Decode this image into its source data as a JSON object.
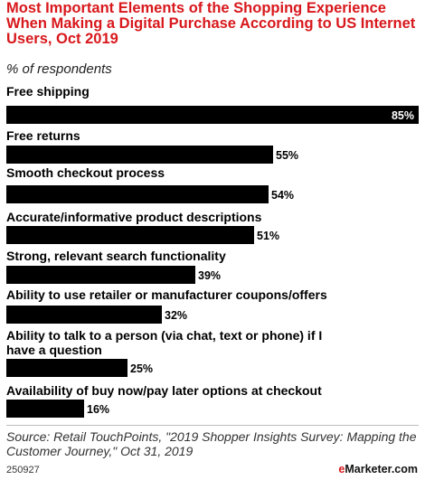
{
  "chart_data": {
    "type": "bar",
    "orientation": "horizontal",
    "title": "Most Important Elements of the Shopping Experience When Making a Digital Purchase According to US Internet Users, Oct 2019",
    "subtitle": "% of respondents",
    "categories": [
      "Free shipping",
      "Free returns",
      "Smooth checkout process",
      "Accurate/informative product descriptions",
      "Strong, relevant search functionality",
      "Ability to use retailer or manufacturer coupons/offers",
      "Ability to talk to a person (via chat, text or phone) if I have a question",
      "Availability of buy now/pay later options at checkout"
    ],
    "values": [
      85,
      55,
      54,
      51,
      39,
      32,
      25,
      16
    ],
    "value_labels": [
      "85%",
      "55%",
      "54%",
      "51%",
      "39%",
      "32%",
      "25%",
      "16%"
    ],
    "xlim": [
      0,
      85
    ],
    "grid": false,
    "legend": "none",
    "bar_color": "#000000"
  },
  "colors": {
    "title": "#d8181c",
    "bar": "#000000",
    "label_inside": "#ffffff",
    "label_outside": "#000000"
  },
  "source": "Source: Retail TouchPoints, \"2019 Shopper Insights Survey: Mapping the Customer Journey,\" Oct 31, 2019",
  "chart_id": "250927",
  "publisher": {
    "brand_prefix": "e",
    "brand_rest": "Marketer",
    "suffix": ".com"
  }
}
